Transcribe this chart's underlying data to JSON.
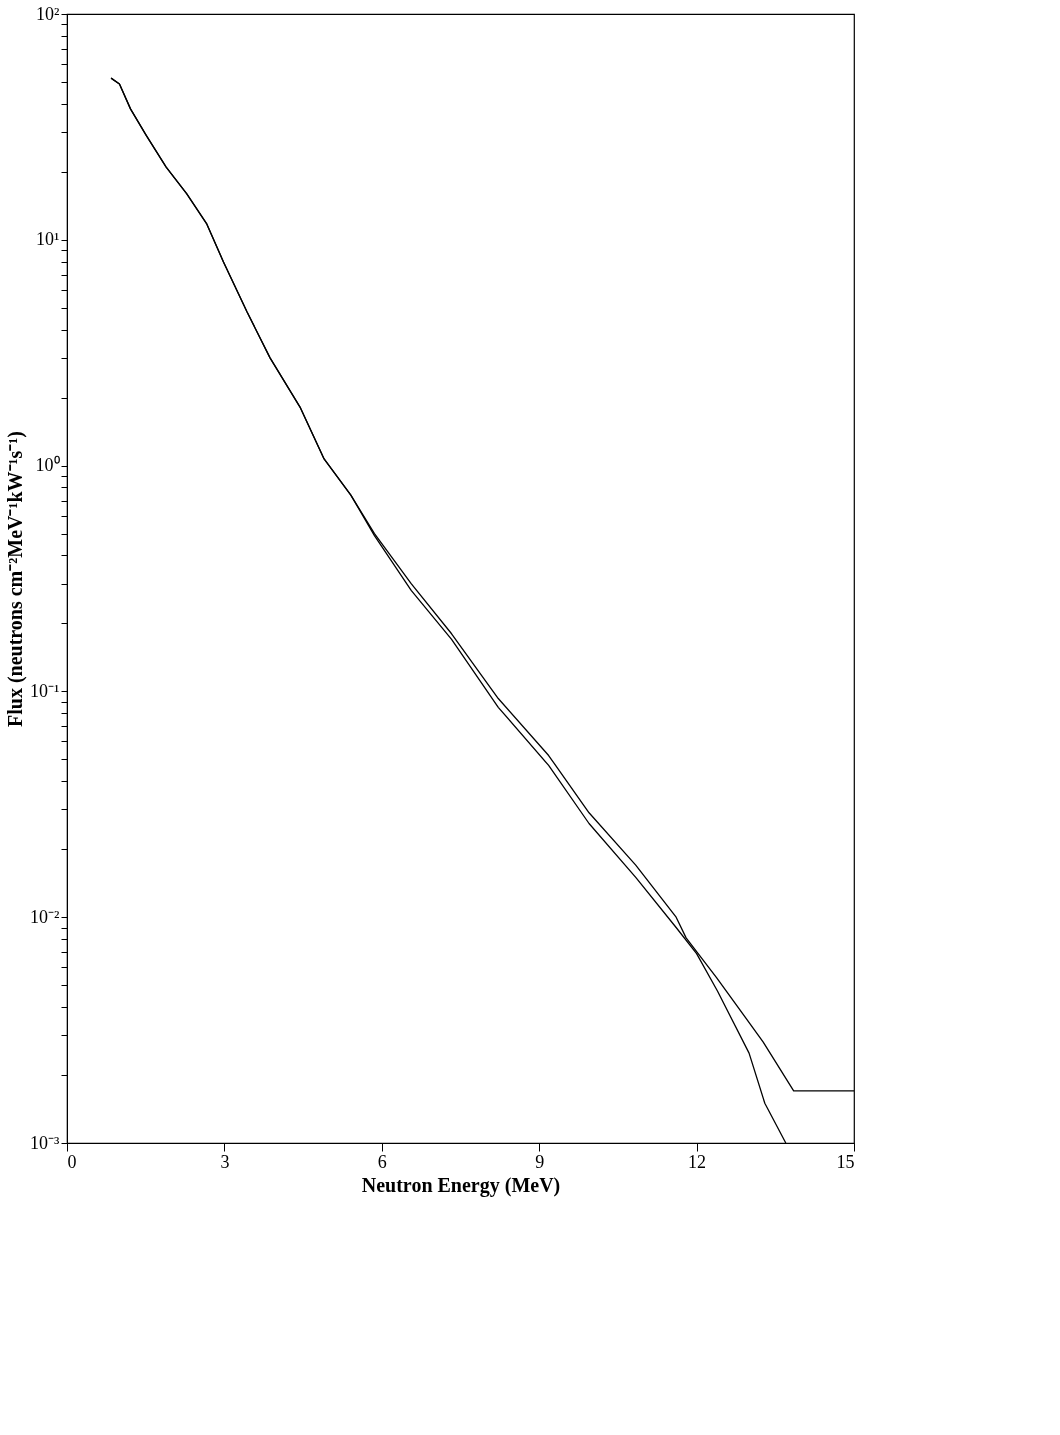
{
  "chart_data": {
    "type": "line",
    "xlabel": "Neutron Energy (MeV)",
    "ylabel": "Flux (neutrons cm⁻²MeV⁻¹kW⁻¹s⁻¹)",
    "log": "y",
    "grid": false,
    "legend": false,
    "marker": "none",
    "line_style": "solid",
    "xlim": [
      0,
      15
    ],
    "xticks": [
      0,
      3,
      6,
      9,
      12,
      15
    ],
    "ylim": [
      0.001,
      100
    ],
    "yticks": [
      {
        "value": 0.001,
        "label": "10⁻³"
      },
      {
        "value": 0.01,
        "label": "10⁻²"
      },
      {
        "value": 0.1,
        "label": "10⁻¹"
      },
      {
        "value": 1,
        "label": "10⁰"
      },
      {
        "value": 10,
        "label": "10¹"
      },
      {
        "value": 100,
        "label": "10²"
      },
      {
        "value": 0.002,
        "label": null
      },
      {
        "value": 0.003,
        "label": null
      },
      {
        "value": 0.004,
        "label": null
      },
      {
        "value": 0.005,
        "label": null
      },
      {
        "value": 0.006,
        "label": null
      },
      {
        "value": 0.007,
        "label": null
      },
      {
        "value": 0.008,
        "label": null
      },
      {
        "value": 0.009,
        "label": null
      },
      {
        "value": 0.02,
        "label": null
      },
      {
        "value": 0.03,
        "label": null
      },
      {
        "value": 0.04,
        "label": null
      },
      {
        "value": 0.05,
        "label": null
      },
      {
        "value": 0.06,
        "label": null
      },
      {
        "value": 0.07,
        "label": null
      },
      {
        "value": 0.08,
        "label": null
      },
      {
        "value": 0.09,
        "label": null
      },
      {
        "value": 0.2,
        "label": null
      },
      {
        "value": 0.3,
        "label": null
      },
      {
        "value": 0.4,
        "label": null
      },
      {
        "value": 0.5,
        "label": null
      },
      {
        "value": 0.6,
        "label": null
      },
      {
        "value": 0.7,
        "label": null
      },
      {
        "value": 0.8,
        "label": null
      },
      {
        "value": 0.9,
        "label": null
      },
      {
        "value": 2,
        "label": null
      },
      {
        "value": 3,
        "label": null
      },
      {
        "value": 4,
        "label": null
      },
      {
        "value": 5,
        "label": null
      },
      {
        "value": 6,
        "label": null
      },
      {
        "value": 7,
        "label": null
      },
      {
        "value": 8,
        "label": null
      },
      {
        "value": 9,
        "label": null
      },
      {
        "value": 20,
        "label": null
      },
      {
        "value": 30,
        "label": null
      },
      {
        "value": 40,
        "label": null
      },
      {
        "value": 50,
        "label": null
      },
      {
        "value": 60,
        "label": null
      },
      {
        "value": 70,
        "label": null
      },
      {
        "value": 80,
        "label": null
      },
      {
        "value": 90,
        "label": null
      }
    ],
    "series": [
      {
        "color": "#000000",
        "x": [
          0.84,
          1.0,
          1.21,
          1.51,
          1.89,
          2.28,
          2.66,
          2.98,
          3.43,
          3.87,
          4.45,
          4.9,
          5.41,
          5.86,
          6.56,
          7.33,
          8.22,
          9.18,
          9.95,
          10.84,
          11.61,
          11.8,
          12.38,
          13.27,
          13.85,
          15.0
        ],
        "values": [
          52,
          49,
          38,
          29,
          21,
          16,
          11.8,
          8,
          4.8,
          3.0,
          1.8,
          1.07,
          0.74,
          0.5,
          0.3,
          0.18,
          0.093,
          0.052,
          0.029,
          0.017,
          0.01,
          0.0081,
          0.0054,
          0.0028,
          0.0017,
          0.0017
        ]
      },
      {
        "color": "#000000",
        "x": [
          0.84,
          1.0,
          1.21,
          1.51,
          1.89,
          2.28,
          2.66,
          2.98,
          3.43,
          3.87,
          4.45,
          4.9,
          5.41,
          5.86,
          6.56,
          7.33,
          8.22,
          9.18,
          9.95,
          10.84,
          11.61,
          12.0,
          12.4,
          13.0,
          13.3,
          13.7
        ],
        "values": [
          52,
          49,
          38,
          29,
          21,
          16,
          11.8,
          8,
          4.8,
          3.0,
          1.8,
          1.07,
          0.74,
          0.49,
          0.28,
          0.17,
          0.085,
          0.047,
          0.026,
          0.015,
          0.009,
          0.0069,
          0.0047,
          0.0025,
          0.0015,
          0.001
        ]
      }
    ]
  }
}
